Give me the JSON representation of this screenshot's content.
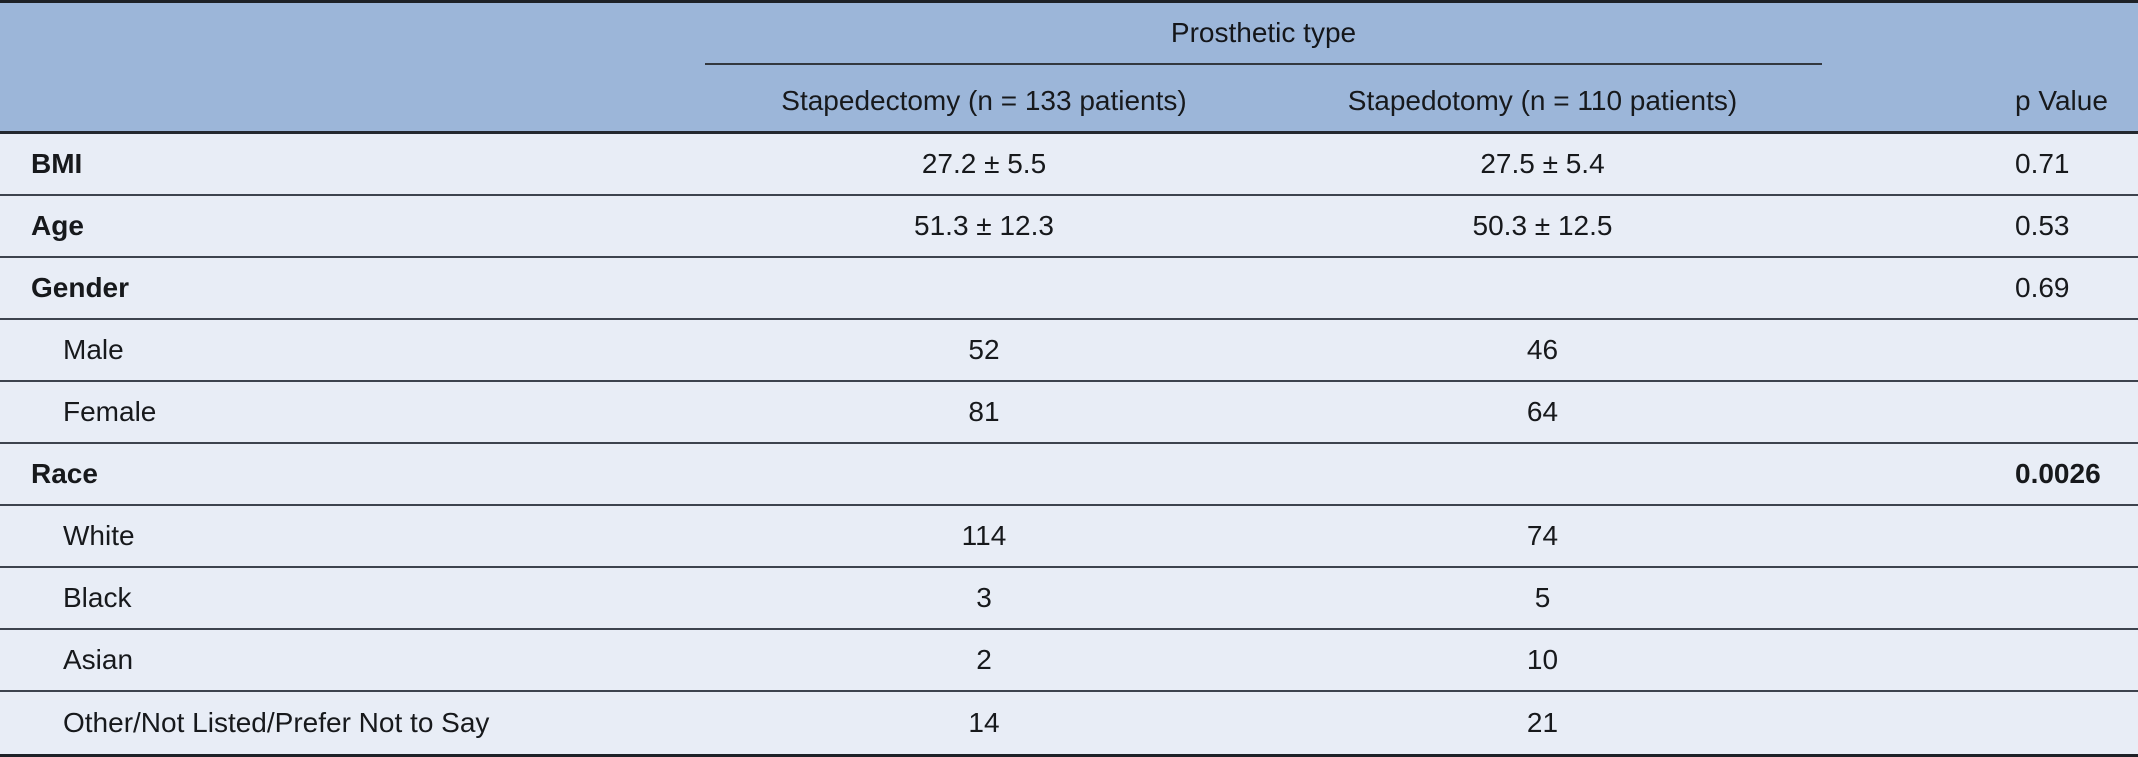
{
  "table": {
    "span_header": "Prosthetic type",
    "columns": {
      "stapedectomy": "Stapedectomy (n = 133 patients)",
      "stapedotomy": "Stapedotomy (n = 110 patients)",
      "p": "p Value"
    },
    "rows": [
      {
        "label": "BMI",
        "stapedectomy": "27.2 ± 5.5",
        "stapedotomy": "27.5 ± 5.4",
        "p_value": "0.71"
      },
      {
        "label": "Age",
        "stapedectomy": "51.3 ± 12.3",
        "stapedotomy": "50.3 ± 12.5",
        "p_value": "0.53"
      },
      {
        "label": "Gender",
        "stapedectomy": "",
        "stapedotomy": "",
        "p_value": "0.69"
      },
      {
        "label": "Male",
        "stapedectomy": "52",
        "stapedotomy": "46",
        "p_value": ""
      },
      {
        "label": "Female",
        "stapedectomy": "81",
        "stapedotomy": "64",
        "p_value": ""
      },
      {
        "label": "Race",
        "stapedectomy": "",
        "stapedotomy": "",
        "p_value": "0.0026"
      },
      {
        "label": "White",
        "stapedectomy": "114",
        "stapedotomy": "74",
        "p_value": ""
      },
      {
        "label": "Black",
        "stapedectomy": "3",
        "stapedotomy": "5",
        "p_value": ""
      },
      {
        "label": "Asian",
        "stapedectomy": "2",
        "stapedotomy": "10",
        "p_value": ""
      },
      {
        "label": "Other/Not Listed/Prefer Not to Say",
        "stapedectomy": "14",
        "stapedotomy": "21",
        "p_value": ""
      }
    ],
    "colors": {
      "header_bg": "#9cb6d9",
      "row_bg": "#e8edf6",
      "separator": "#3d434e",
      "outer_border": "#1d2127"
    }
  }
}
